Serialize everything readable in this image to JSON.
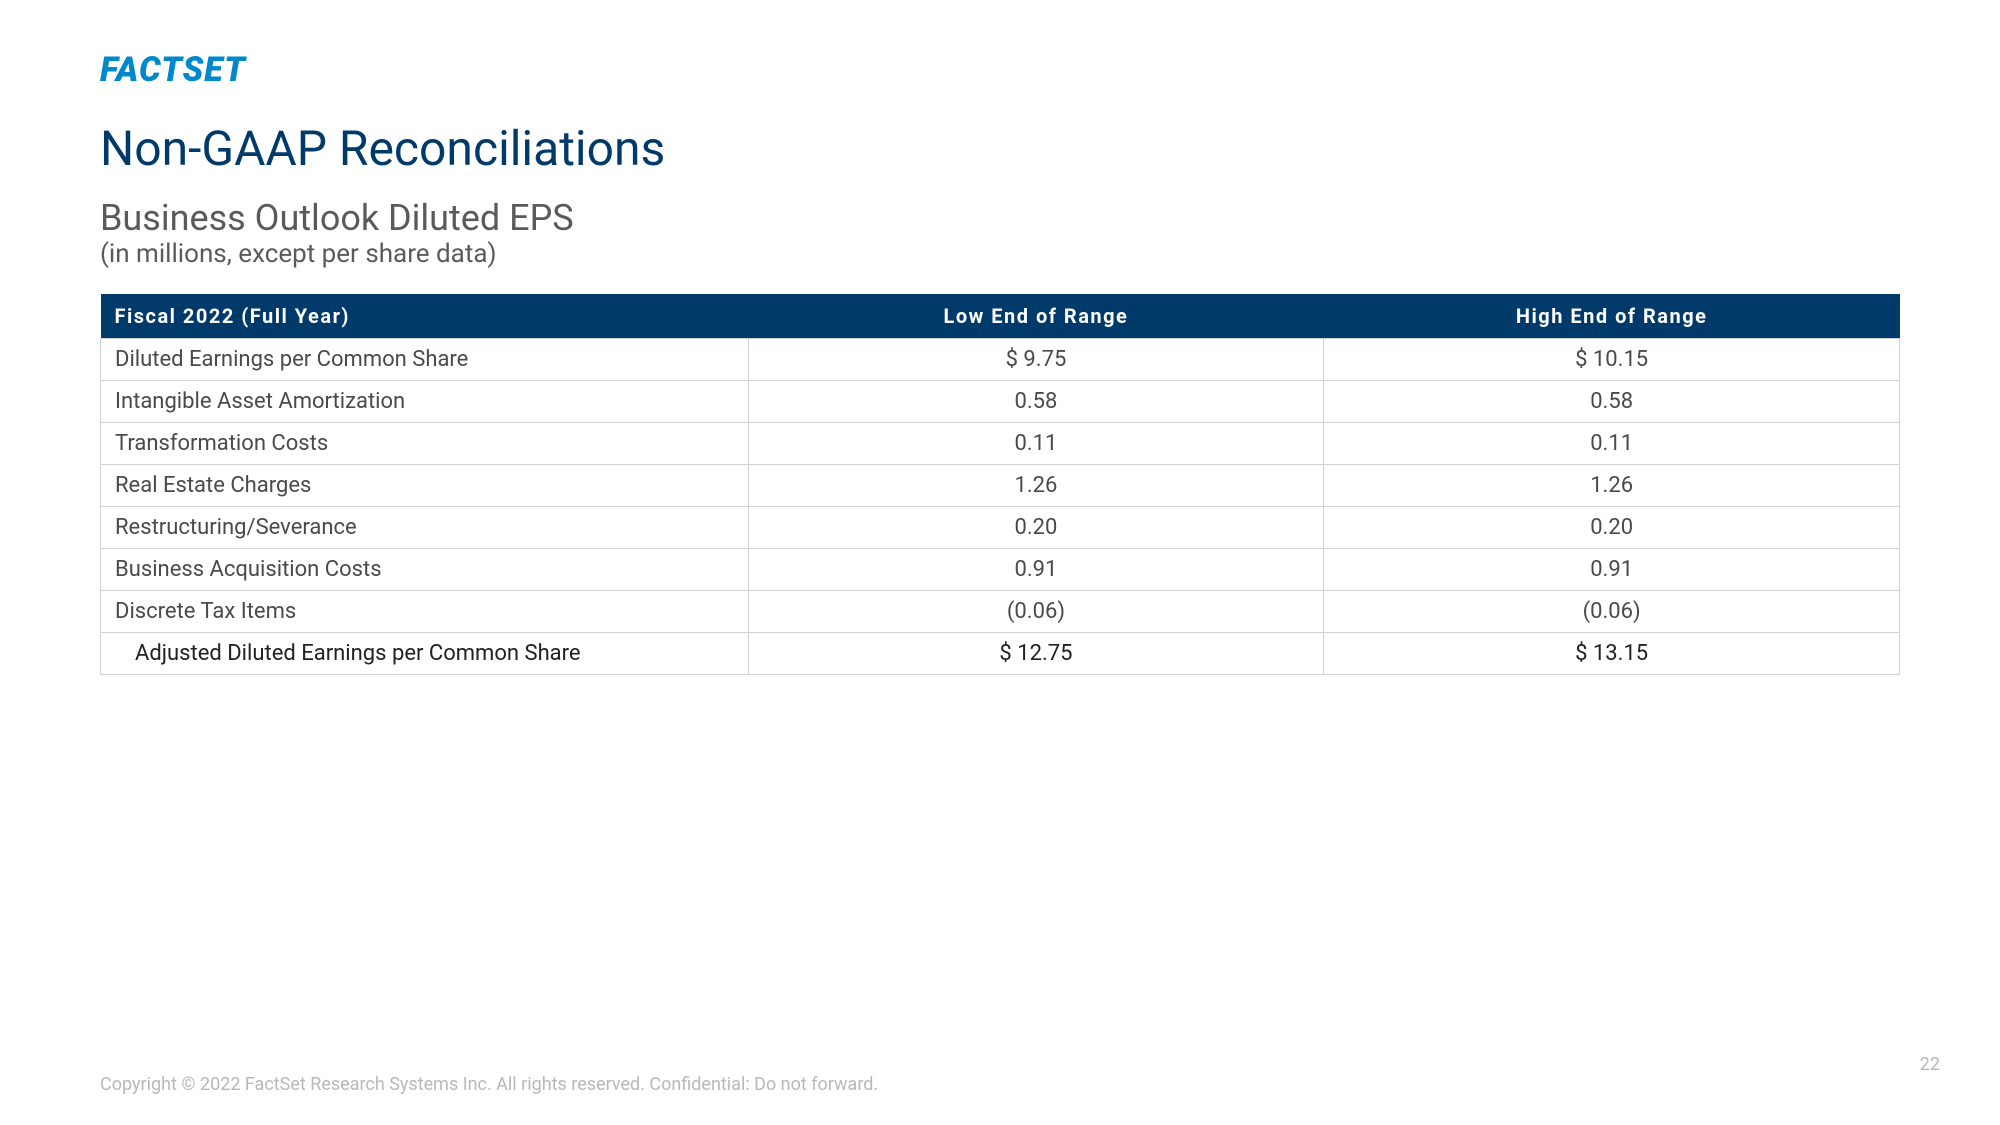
{
  "brand": {
    "name": "FACTSET",
    "color": "#0088cc"
  },
  "title": "Non-GAAP Reconciliations",
  "subtitle": "Business Outlook Diluted EPS",
  "subnote": "(in millions, except per share data)",
  "table": {
    "header": {
      "col1": "Fiscal 2022 (Full Year)",
      "col2": "Low End of Range",
      "col3": "High End of Range",
      "bg_color": "#003a6b",
      "text_color": "#ffffff"
    },
    "border_color": "#d0d0d0",
    "rows": [
      {
        "label": "Diluted Earnings per Common Share",
        "low": "$ 9.75",
        "high": "$ 10.15"
      },
      {
        "label": "Intangible Asset Amortization",
        "low": "0.58",
        "high": "0.58"
      },
      {
        "label": "Transformation Costs",
        "low": "0.11",
        "high": "0.11"
      },
      {
        "label": "Real Estate Charges",
        "low": "1.26",
        "high": "1.26"
      },
      {
        "label": "Restructuring/Severance",
        "low": "0.20",
        "high": "0.20"
      },
      {
        "label": "Business Acquisition Costs",
        "low": "0.91",
        "high": "0.91"
      },
      {
        "label": "Discrete Tax Items",
        "low": "(0.06)",
        "high": "(0.06)"
      }
    ],
    "summary": {
      "label": "Adjusted Diluted Earnings per Common Share",
      "low": "$ 12.75",
      "high": "$ 13.15"
    }
  },
  "footer": "Copyright © 2022 FactSet Research Systems Inc. All rights reserved. Confidential: Do not forward.",
  "page_number": "22",
  "colors": {
    "title": "#003a6b",
    "subtitle": "#5a5a5a",
    "body_text": "#4a4a4a",
    "footer_text": "#b8b8b8",
    "background": "#ffffff"
  }
}
